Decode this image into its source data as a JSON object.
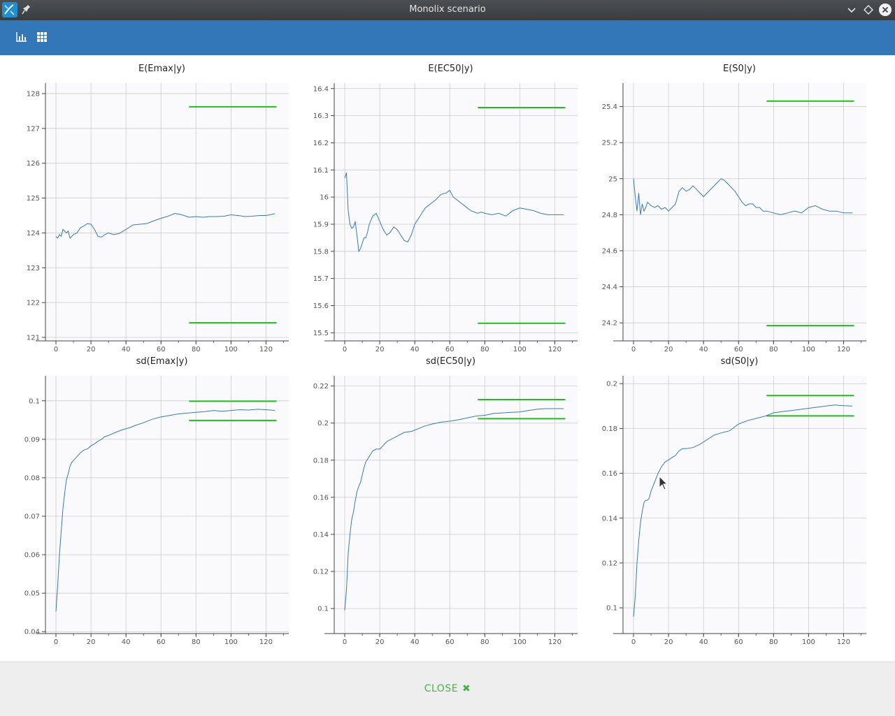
{
  "window": {
    "title": "Monolix scenario"
  },
  "footer": {
    "close_label": "CLOSE",
    "close_icon": "✖"
  },
  "colors": {
    "accent": "#3377b8",
    "line": "#3a7ab3",
    "target": "#22bb22",
    "plot_bg": "#fafafc",
    "grid": "#cccccc"
  },
  "chart_data": [
    {
      "type": "line",
      "title": "E(Emax|y)",
      "xlim": [
        -6,
        133
      ],
      "ylim": [
        120.9,
        128.3
      ],
      "xticks": [
        0,
        20,
        40,
        60,
        80,
        100,
        120
      ],
      "yticks": [
        121,
        122,
        123,
        124,
        125,
        126,
        127,
        128
      ],
      "hlines": [
        {
          "y": 127.62,
          "x": [
            76,
            126
          ]
        },
        {
          "y": 121.42,
          "x": [
            76,
            126
          ]
        }
      ],
      "series": [
        {
          "x": [
            0,
            1,
            2,
            3,
            4,
            5,
            6,
            7,
            8,
            10,
            12,
            14,
            16,
            18,
            20,
            22,
            24,
            26,
            28,
            30,
            33,
            36,
            40,
            44,
            48,
            52,
            56,
            60,
            64,
            68,
            72,
            76,
            80,
            84,
            88,
            92,
            96,
            100,
            104,
            108,
            112,
            116,
            120,
            125
          ],
          "y": [
            123.9,
            123.85,
            123.95,
            123.9,
            124.1,
            124.05,
            124.0,
            124.05,
            123.85,
            123.95,
            124.0,
            124.15,
            124.2,
            124.27,
            124.25,
            124.1,
            123.9,
            123.88,
            123.95,
            124.0,
            123.95,
            123.98,
            124.1,
            124.23,
            124.25,
            124.27,
            124.35,
            124.42,
            124.48,
            124.56,
            124.52,
            124.45,
            124.47,
            124.45,
            124.47,
            124.47,
            124.48,
            124.52,
            124.5,
            124.47,
            124.48,
            124.5,
            124.5,
            124.55
          ]
        }
      ]
    },
    {
      "type": "line",
      "title": "E(EC50|y)",
      "xlim": [
        -6,
        133
      ],
      "ylim": [
        15.47,
        16.42
      ],
      "xticks": [
        0,
        20,
        40,
        60,
        80,
        100,
        120
      ],
      "yticks": [
        15.5,
        15.6,
        15.7,
        15.8,
        15.9,
        16,
        16.1,
        16.2,
        16.3,
        16.4
      ],
      "hlines": [
        {
          "y": 16.33,
          "x": [
            76,
            126
          ]
        },
        {
          "y": 15.535,
          "x": [
            76,
            126
          ]
        }
      ],
      "series": [
        {
          "x": [
            0,
            1,
            2,
            3,
            4,
            5,
            6,
            7,
            8,
            9,
            10,
            11,
            12,
            13,
            14,
            16,
            18,
            20,
            22,
            24,
            26,
            28,
            30,
            32,
            34,
            36,
            38,
            40,
            42,
            44,
            46,
            48,
            50,
            52,
            55,
            58,
            60,
            62,
            64,
            66,
            68,
            70,
            72,
            74,
            76,
            78,
            80,
            84,
            88,
            92,
            96,
            100,
            104,
            108,
            112,
            116,
            120,
            125
          ],
          "y": [
            16.07,
            16.09,
            15.95,
            15.9,
            15.885,
            15.89,
            15.91,
            15.86,
            15.8,
            15.81,
            15.83,
            15.85,
            15.85,
            15.87,
            15.9,
            15.93,
            15.94,
            15.91,
            15.88,
            15.86,
            15.87,
            15.89,
            15.88,
            15.86,
            15.84,
            15.835,
            15.86,
            15.9,
            15.92,
            15.94,
            15.96,
            15.97,
            15.98,
            15.99,
            16.01,
            16.015,
            16.025,
            16.0,
            15.99,
            15.98,
            15.97,
            15.96,
            15.95,
            15.945,
            15.94,
            15.945,
            15.94,
            15.935,
            15.94,
            15.93,
            15.95,
            15.96,
            15.955,
            15.95,
            15.94,
            15.935,
            15.935,
            15.935
          ]
        }
      ]
    },
    {
      "type": "line",
      "title": "E(S0|y)",
      "xlim": [
        -6,
        133
      ],
      "ylim": [
        24.1,
        25.53
      ],
      "xticks": [
        0,
        20,
        40,
        60,
        80,
        100,
        120
      ],
      "yticks": [
        24.2,
        24.4,
        24.6,
        24.8,
        25,
        25.2,
        25.4
      ],
      "hlines": [
        {
          "y": 25.43,
          "x": [
            76,
            126
          ]
        },
        {
          "y": 24.185,
          "x": [
            76,
            126
          ]
        }
      ],
      "series": [
        {
          "x": [
            0,
            1,
            2,
            3,
            4,
            5,
            6,
            7,
            8,
            10,
            12,
            14,
            16,
            18,
            20,
            22,
            24,
            26,
            28,
            30,
            32,
            34,
            36,
            38,
            40,
            42,
            44,
            46,
            48,
            50,
            52,
            54,
            56,
            58,
            60,
            62,
            64,
            66,
            68,
            70,
            72,
            74,
            76,
            80,
            84,
            88,
            92,
            96,
            100,
            104,
            108,
            112,
            116,
            120,
            125
          ],
          "y": [
            25.0,
            24.9,
            24.82,
            24.92,
            24.8,
            24.86,
            24.82,
            24.84,
            24.87,
            24.85,
            24.84,
            24.85,
            24.83,
            24.84,
            24.82,
            24.84,
            24.86,
            24.93,
            24.95,
            24.93,
            24.94,
            24.96,
            24.94,
            24.92,
            24.9,
            24.92,
            24.94,
            24.96,
            24.98,
            25.0,
            24.99,
            24.97,
            24.95,
            24.93,
            24.9,
            24.87,
            24.85,
            24.86,
            24.86,
            24.84,
            24.84,
            24.82,
            24.82,
            24.81,
            24.8,
            24.81,
            24.82,
            24.81,
            24.84,
            24.85,
            24.83,
            24.82,
            24.82,
            24.81,
            24.81
          ]
        }
      ]
    },
    {
      "type": "line",
      "title": "sd(Emax|y)",
      "xlim": [
        -6,
        133
      ],
      "ylim": [
        0.0395,
        0.1065
      ],
      "xticks": [
        0,
        20,
        40,
        60,
        80,
        100,
        120
      ],
      "yticks": [
        0.04,
        0.05,
        0.06,
        0.07,
        0.08,
        0.09,
        0.1
      ],
      "hlines": [
        {
          "y": 0.0999,
          "x": [
            76,
            126
          ]
        },
        {
          "y": 0.0949,
          "x": [
            76,
            126
          ]
        }
      ],
      "series": [
        {
          "x": [
            0,
            1,
            2,
            3,
            4,
            5,
            6,
            7,
            8,
            9,
            10,
            12,
            14,
            16,
            18,
            20,
            22,
            24,
            26,
            28,
            30,
            34,
            38,
            42,
            46,
            50,
            55,
            60,
            65,
            70,
            75,
            80,
            85,
            90,
            95,
            100,
            105,
            110,
            115,
            120,
            125
          ],
          "y": [
            0.0452,
            0.052,
            0.06,
            0.066,
            0.072,
            0.076,
            0.0795,
            0.081,
            0.083,
            0.084,
            0.0845,
            0.0855,
            0.0865,
            0.0872,
            0.0875,
            0.0883,
            0.0888,
            0.0895,
            0.09,
            0.0907,
            0.091,
            0.0918,
            0.0925,
            0.093,
            0.0937,
            0.0943,
            0.0952,
            0.0958,
            0.0962,
            0.0966,
            0.0968,
            0.097,
            0.0972,
            0.0975,
            0.0973,
            0.0975,
            0.0977,
            0.0976,
            0.0978,
            0.0977,
            0.0975
          ]
        }
      ]
    },
    {
      "type": "line",
      "title": "sd(EC50|y)",
      "xlim": [
        -6,
        133
      ],
      "ylim": [
        0.0865,
        0.2255
      ],
      "xticks": [
        0,
        20,
        40,
        60,
        80,
        100,
        120
      ],
      "yticks": [
        0.1,
        0.12,
        0.14,
        0.16,
        0.18,
        0.2,
        0.22
      ],
      "hlines": [
        {
          "y": 0.2127,
          "x": [
            76,
            126
          ]
        },
        {
          "y": 0.2024,
          "x": [
            76,
            126
          ]
        }
      ],
      "series": [
        {
          "x": [
            0,
            1,
            2,
            3,
            4,
            5,
            6,
            7,
            8,
            9,
            10,
            11,
            12,
            14,
            16,
            18,
            20,
            22,
            24,
            26,
            28,
            30,
            34,
            38,
            42,
            46,
            50,
            55,
            60,
            65,
            70,
            75,
            80,
            85,
            90,
            95,
            100,
            105,
            110,
            115,
            120,
            125
          ],
          "y": [
            0.099,
            0.11,
            0.13,
            0.14,
            0.148,
            0.152,
            0.158,
            0.163,
            0.166,
            0.168,
            0.172,
            0.176,
            0.179,
            0.182,
            0.185,
            0.186,
            0.186,
            0.188,
            0.19,
            0.191,
            0.192,
            0.193,
            0.195,
            0.1955,
            0.197,
            0.1985,
            0.1995,
            0.2005,
            0.201,
            0.2018,
            0.2028,
            0.2038,
            0.2042,
            0.2052,
            0.2055,
            0.2058,
            0.206,
            0.2068,
            0.2075,
            0.2078,
            0.2078,
            0.2078
          ]
        }
      ]
    },
    {
      "type": "line",
      "title": "sd(S0|y)",
      "xlim": [
        -6,
        133
      ],
      "ylim": [
        0.0885,
        0.2035
      ],
      "xticks": [
        0,
        20,
        40,
        60,
        80,
        100,
        120
      ],
      "yticks": [
        0.1,
        0.12,
        0.14,
        0.16,
        0.18,
        0.2
      ],
      "hlines": [
        {
          "y": 0.1947,
          "x": [
            76,
            126
          ]
        },
        {
          "y": 0.1856,
          "x": [
            76,
            126
          ]
        }
      ],
      "series": [
        {
          "x": [
            0,
            1,
            2,
            3,
            4,
            5,
            6,
            7,
            8,
            9,
            10,
            12,
            14,
            16,
            18,
            20,
            22,
            24,
            26,
            28,
            30,
            34,
            38,
            42,
            46,
            50,
            55,
            60,
            65,
            70,
            75,
            80,
            85,
            90,
            95,
            100,
            105,
            110,
            115,
            120,
            125
          ],
          "y": [
            0.096,
            0.105,
            0.12,
            0.13,
            0.138,
            0.143,
            0.147,
            0.148,
            0.148,
            0.149,
            0.152,
            0.156,
            0.16,
            0.163,
            0.165,
            0.166,
            0.167,
            0.168,
            0.17,
            0.171,
            0.171,
            0.1715,
            0.173,
            0.175,
            0.177,
            0.178,
            0.179,
            0.182,
            0.1835,
            0.1845,
            0.1855,
            0.187,
            0.1875,
            0.188,
            0.1885,
            0.189,
            0.1895,
            0.19,
            0.1905,
            0.1902,
            0.19
          ]
        }
      ]
    }
  ]
}
